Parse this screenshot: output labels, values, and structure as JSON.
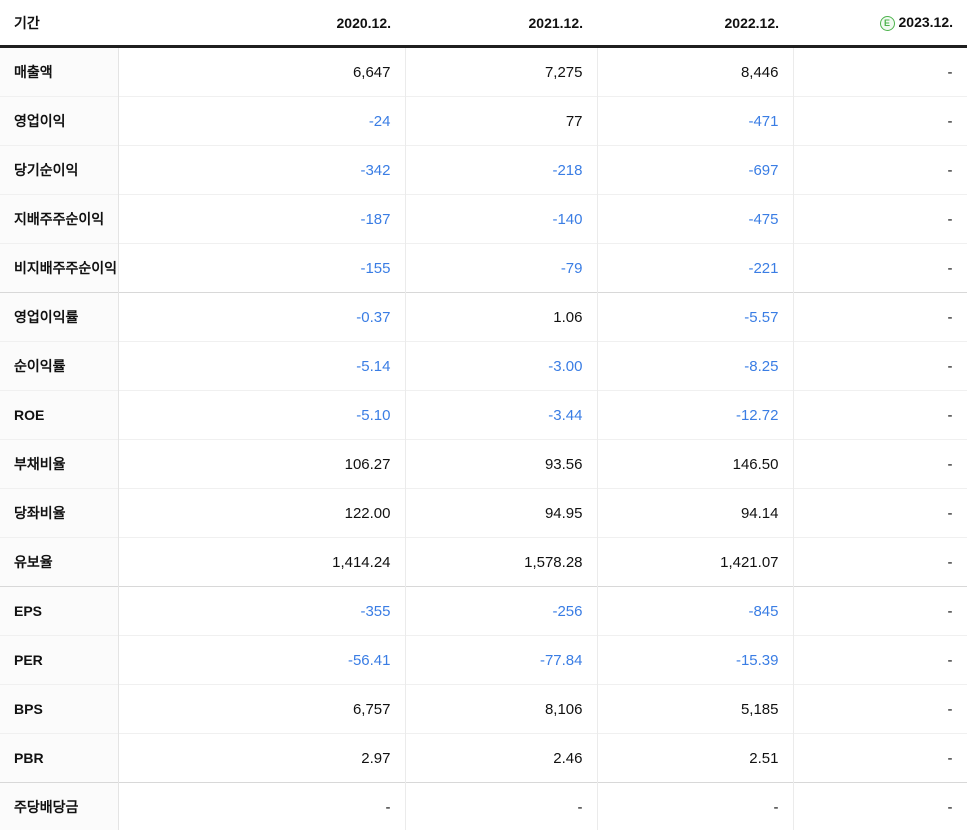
{
  "colors": {
    "negative_value": "#3a7de4",
    "value_text": "#111111",
    "label_text": "#111111",
    "estimate_green": "#4db34d",
    "header_rule": "#1f1f1f",
    "group_rule": "#d8d8d8",
    "row_rule": "#f0f0f0",
    "column_rule": "#ebebeb",
    "label_column_bg": "#fbfbfb"
  },
  "table": {
    "header": {
      "period_label": "기간",
      "estimate_badge": "E",
      "columns": [
        {
          "label": "2020.12.",
          "estimate": false
        },
        {
          "label": "2021.12.",
          "estimate": false
        },
        {
          "label": "2022.12.",
          "estimate": false
        },
        {
          "label": "2023.12.",
          "estimate": true
        }
      ]
    },
    "groups": [
      {
        "name": "income-absolute",
        "rows": [
          {
            "label": "매출액",
            "values": [
              "6,647",
              "7,275",
              "8,446",
              "-"
            ]
          },
          {
            "label": "영업이익",
            "values": [
              "-24",
              "77",
              "-471",
              "-"
            ]
          },
          {
            "label": "당기순이익",
            "values": [
              "-342",
              "-218",
              "-697",
              "-"
            ]
          },
          {
            "label": "지배주주순이익",
            "values": [
              "-187",
              "-140",
              "-475",
              "-"
            ]
          },
          {
            "label": "비지배주주순이익",
            "values": [
              "-155",
              "-79",
              "-221",
              "-"
            ]
          }
        ]
      },
      {
        "name": "ratios",
        "rows": [
          {
            "label": "영업이익률",
            "values": [
              "-0.37",
              "1.06",
              "-5.57",
              "-"
            ]
          },
          {
            "label": "순이익률",
            "values": [
              "-5.14",
              "-3.00",
              "-8.25",
              "-"
            ]
          },
          {
            "label": "ROE",
            "values": [
              "-5.10",
              "-3.44",
              "-12.72",
              "-"
            ]
          },
          {
            "label": "부채비율",
            "values": [
              "106.27",
              "93.56",
              "146.50",
              "-"
            ]
          },
          {
            "label": "당좌비율",
            "values": [
              "122.00",
              "94.95",
              "94.14",
              "-"
            ]
          },
          {
            "label": "유보율",
            "values": [
              "1,414.24",
              "1,578.28",
              "1,421.07",
              "-"
            ]
          }
        ]
      },
      {
        "name": "per-share",
        "rows": [
          {
            "label": "EPS",
            "values": [
              "-355",
              "-256",
              "-845",
              "-"
            ]
          },
          {
            "label": "PER",
            "values": [
              "-56.41",
              "-77.84",
              "-15.39",
              "-"
            ]
          },
          {
            "label": "BPS",
            "values": [
              "6,757",
              "8,106",
              "5,185",
              "-"
            ]
          },
          {
            "label": "PBR",
            "values": [
              "2.97",
              "2.46",
              "2.51",
              "-"
            ]
          }
        ]
      },
      {
        "name": "dividend",
        "rows": [
          {
            "label": "주당배당금",
            "values": [
              "-",
              "-",
              "-",
              "-"
            ]
          }
        ]
      }
    ]
  }
}
